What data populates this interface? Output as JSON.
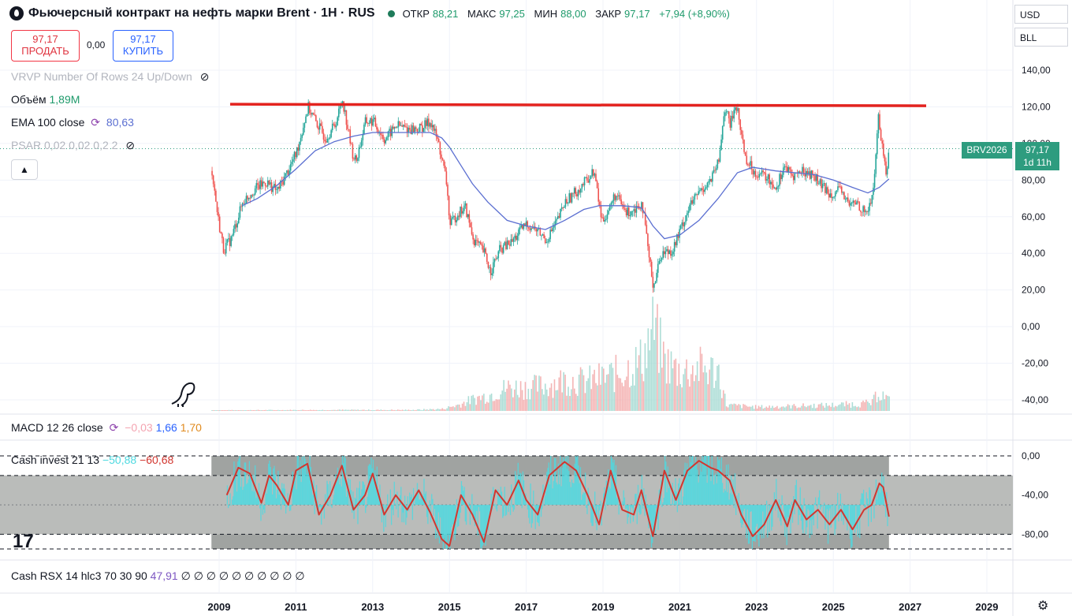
{
  "header": {
    "title": "Фьючерсный контракт на нефть марки Brent · 1Н · RUS",
    "open_label": "ОТКР",
    "open": "88,21",
    "high_label": "МАКС",
    "high": "97,25",
    "low_label": "МИН",
    "low": "88,00",
    "close_label": "ЗАКР",
    "close": "97,17",
    "change": "+7,94 (+8,90%)"
  },
  "trade": {
    "sell_price": "97,17",
    "sell_label": "ПРОДАТЬ",
    "spread": "0,00",
    "buy_price": "97,17",
    "buy_label": "КУПИТЬ"
  },
  "currency": {
    "ccy": "USD",
    "unit": "BLL"
  },
  "indicators": {
    "vrvp": "VRVP Number Of Rows 24 Up/Down",
    "volume_label": "Объём",
    "volume_value": "1,89M",
    "ema_label": "EMA 100 close",
    "ema_value": "80,63",
    "psar": "PSAR 0,02 0,02 0,2 2",
    "macd_label": "MACD 12 26 close",
    "macd_v1": "−0,03",
    "macd_v2": "1,66",
    "macd_v3": "1,70",
    "cash_label": "Cash invest 21 13",
    "cash_v1": "−50,88",
    "cash_v2": "−60,68",
    "rsx_label": "Cash RSX 14 hlc3 70 30 90",
    "rsx_value": "47,91",
    "rsx_zeros": "∅ ∅ ∅ ∅ ∅ ∅ ∅ ∅ ∅ ∅"
  },
  "price_badge": {
    "symbol": "BRV2026",
    "price": "97,17",
    "countdown": "1d 11h"
  },
  "colors": {
    "up": "#26a69a",
    "down": "#ef5350",
    "ema": "#5b6fd1",
    "resistance": "#e3231f",
    "cash_line": "#d2362f",
    "cash_fill": "#4dd9e0",
    "panel_bg": "#b2b5b3"
  },
  "chart_data": {
    "type": "candlestick",
    "title": "",
    "x_ticks": [
      "2009",
      "2011",
      "2013",
      "2015",
      "2017",
      "2019",
      "2021",
      "2023",
      "2025",
      "2027",
      "2029"
    ],
    "price_axis_ticks": [
      "140,00",
      "120,00",
      "100,00",
      "80,00",
      "60,00",
      "40,00",
      "20,00",
      "0,00",
      "-20,00",
      "-40,00"
    ],
    "ylim": [
      -45,
      145
    ],
    "grid": true,
    "resistance_level": 121,
    "close_path": [
      [
        2008.8,
        85
      ],
      [
        2008.95,
        60
      ],
      [
        2009.1,
        42
      ],
      [
        2009.3,
        48
      ],
      [
        2009.6,
        68
      ],
      [
        2009.9,
        75
      ],
      [
        2010.2,
        79
      ],
      [
        2010.5,
        74
      ],
      [
        2010.8,
        86
      ],
      [
        2011.0,
        95
      ],
      [
        2011.3,
        120
      ],
      [
        2011.5,
        112
      ],
      [
        2011.75,
        103
      ],
      [
        2012.0,
        110
      ],
      [
        2012.2,
        124
      ],
      [
        2012.45,
        95
      ],
      [
        2012.55,
        90
      ],
      [
        2012.8,
        112
      ],
      [
        2013.0,
        112
      ],
      [
        2013.3,
        102
      ],
      [
        2013.6,
        110
      ],
      [
        2013.9,
        108
      ],
      [
        2014.2,
        108
      ],
      [
        2014.5,
        112
      ],
      [
        2014.7,
        100
      ],
      [
        2014.9,
        80
      ],
      [
        2015.0,
        55
      ],
      [
        2015.2,
        62
      ],
      [
        2015.4,
        65
      ],
      [
        2015.6,
        48
      ],
      [
        2015.9,
        40
      ],
      [
        2016.05,
        30
      ],
      [
        2016.3,
        42
      ],
      [
        2016.6,
        46
      ],
      [
        2016.9,
        54
      ],
      [
        2017.0,
        56
      ],
      [
        2017.3,
        52
      ],
      [
        2017.5,
        47
      ],
      [
        2017.8,
        58
      ],
      [
        2018.0,
        68
      ],
      [
        2018.4,
        76
      ],
      [
        2018.75,
        85
      ],
      [
        2018.95,
        58
      ],
      [
        2019.1,
        62
      ],
      [
        2019.3,
        72
      ],
      [
        2019.6,
        62
      ],
      [
        2019.9,
        66
      ],
      [
        2020.0,
        68
      ],
      [
        2020.2,
        35
      ],
      [
        2020.3,
        22
      ],
      [
        2020.5,
        40
      ],
      [
        2020.8,
        42
      ],
      [
        2020.95,
        50
      ],
      [
        2021.2,
        64
      ],
      [
        2021.5,
        74
      ],
      [
        2021.8,
        80
      ],
      [
        2022.0,
        90
      ],
      [
        2022.15,
        120
      ],
      [
        2022.3,
        110
      ],
      [
        2022.45,
        122
      ],
      [
        2022.7,
        92
      ],
      [
        2022.9,
        85
      ],
      [
        2023.2,
        82
      ],
      [
        2023.5,
        76
      ],
      [
        2023.7,
        88
      ],
      [
        2023.9,
        82
      ],
      [
        2024.2,
        85
      ],
      [
        2024.5,
        82
      ],
      [
        2024.7,
        76
      ],
      [
        2024.9,
        73
      ],
      [
        2025.2,
        74
      ],
      [
        2025.4,
        66
      ],
      [
        2025.6,
        68
      ],
      [
        2025.8,
        62
      ],
      [
        2025.95,
        66
      ],
      [
        2026.05,
        80
      ],
      [
        2026.15,
        115
      ],
      [
        2026.25,
        100
      ],
      [
        2026.35,
        84
      ],
      [
        2026.45,
        97.17
      ]
    ],
    "ema_path": [
      [
        2009.6,
        66
      ],
      [
        2010.0,
        70
      ],
      [
        2010.5,
        77
      ],
      [
        2011.0,
        86
      ],
      [
        2011.5,
        96
      ],
      [
        2012.0,
        101
      ],
      [
        2012.5,
        104
      ],
      [
        2013.0,
        106
      ],
      [
        2013.5,
        106
      ],
      [
        2014.0,
        106
      ],
      [
        2014.5,
        106
      ],
      [
        2014.8,
        103
      ],
      [
        2015.0,
        98
      ],
      [
        2015.3,
        88
      ],
      [
        2015.6,
        78
      ],
      [
        2016.0,
        68
      ],
      [
        2016.5,
        58
      ],
      [
        2017.0,
        55
      ],
      [
        2017.5,
        53
      ],
      [
        2018.0,
        58
      ],
      [
        2018.5,
        64
      ],
      [
        2018.9,
        66
      ],
      [
        2019.5,
        66
      ],
      [
        2020.0,
        65
      ],
      [
        2020.3,
        55
      ],
      [
        2020.6,
        48
      ],
      [
        2021.0,
        50
      ],
      [
        2021.5,
        58
      ],
      [
        2022.0,
        70
      ],
      [
        2022.5,
        84
      ],
      [
        2022.9,
        87
      ],
      [
        2023.5,
        85
      ],
      [
        2024.0,
        84
      ],
      [
        2024.5,
        83
      ],
      [
        2025.0,
        80
      ],
      [
        2025.5,
        76
      ],
      [
        2025.9,
        73
      ],
      [
        2026.2,
        76
      ],
      [
        2026.45,
        80.63
      ]
    ],
    "volume_path": [
      [
        2008.8,
        0.3
      ],
      [
        2010.0,
        0.4
      ],
      [
        2012.0,
        0.5
      ],
      [
        2014.0,
        0.5
      ],
      [
        2014.8,
        1.0
      ],
      [
        2015.2,
        3
      ],
      [
        2015.6,
        6
      ],
      [
        2016.0,
        8
      ],
      [
        2016.5,
        12
      ],
      [
        2017.0,
        12
      ],
      [
        2017.5,
        13
      ],
      [
        2018.0,
        16
      ],
      [
        2018.5,
        15
      ],
      [
        2019.0,
        17
      ],
      [
        2019.5,
        20
      ],
      [
        2020.0,
        26
      ],
      [
        2020.3,
        42
      ],
      [
        2020.6,
        25
      ],
      [
        2021.0,
        20
      ],
      [
        2021.5,
        22
      ],
      [
        2022.0,
        20
      ],
      [
        2022.2,
        3
      ],
      [
        2023.0,
        2
      ],
      [
        2024.0,
        2.5
      ],
      [
        2025.0,
        3
      ],
      [
        2026.0,
        4
      ],
      [
        2026.15,
        10
      ],
      [
        2026.45,
        5
      ]
    ],
    "volume_max": 45,
    "cash_invest": {
      "ylim": [
        -100,
        3
      ],
      "ticks": [
        "0,00",
        "-40,00",
        "-80,00"
      ],
      "levels": [
        0,
        -20,
        -80,
        -95
      ],
      "path": [
        [
          2009.2,
          -40
        ],
        [
          2009.5,
          -12
        ],
        [
          2009.8,
          -18
        ],
        [
          2010.1,
          -48
        ],
        [
          2010.3,
          -20
        ],
        [
          2010.5,
          -30
        ],
        [
          2010.8,
          -50
        ],
        [
          2011.0,
          -15
        ],
        [
          2011.3,
          -8
        ],
        [
          2011.6,
          -60
        ],
        [
          2011.9,
          -40
        ],
        [
          2012.2,
          -10
        ],
        [
          2012.5,
          -55
        ],
        [
          2012.8,
          -40
        ],
        [
          2013.0,
          -18
        ],
        [
          2013.3,
          -60
        ],
        [
          2013.6,
          -40
        ],
        [
          2013.9,
          -55
        ],
        [
          2014.2,
          -35
        ],
        [
          2014.5,
          -58
        ],
        [
          2014.8,
          -85
        ],
        [
          2015.0,
          -92
        ],
        [
          2015.3,
          -40
        ],
        [
          2015.6,
          -60
        ],
        [
          2015.9,
          -88
        ],
        [
          2016.2,
          -35
        ],
        [
          2016.5,
          -50
        ],
        [
          2016.8,
          -25
        ],
        [
          2017.0,
          -45
        ],
        [
          2017.3,
          -60
        ],
        [
          2017.6,
          -20
        ],
        [
          2018.0,
          -6
        ],
        [
          2018.3,
          -15
        ],
        [
          2018.6,
          -40
        ],
        [
          2018.9,
          -70
        ],
        [
          2019.2,
          -15
        ],
        [
          2019.5,
          -55
        ],
        [
          2019.8,
          -60
        ],
        [
          2020.0,
          -35
        ],
        [
          2020.3,
          -82
        ],
        [
          2020.6,
          -15
        ],
        [
          2020.9,
          -45
        ],
        [
          2021.2,
          -15
        ],
        [
          2021.5,
          -5
        ],
        [
          2021.8,
          -12
        ],
        [
          2022.0,
          -15
        ],
        [
          2022.3,
          -25
        ],
        [
          2022.6,
          -60
        ],
        [
          2022.9,
          -82
        ],
        [
          2023.2,
          -70
        ],
        [
          2023.5,
          -45
        ],
        [
          2023.8,
          -72
        ],
        [
          2024.0,
          -45
        ],
        [
          2024.3,
          -65
        ],
        [
          2024.6,
          -55
        ],
        [
          2024.9,
          -70
        ],
        [
          2025.2,
          -55
        ],
        [
          2025.5,
          -75
        ],
        [
          2025.8,
          -55
        ],
        [
          2026.0,
          -50
        ],
        [
          2026.2,
          -28
        ],
        [
          2026.3,
          -32
        ],
        [
          2026.45,
          -62
        ]
      ]
    }
  }
}
